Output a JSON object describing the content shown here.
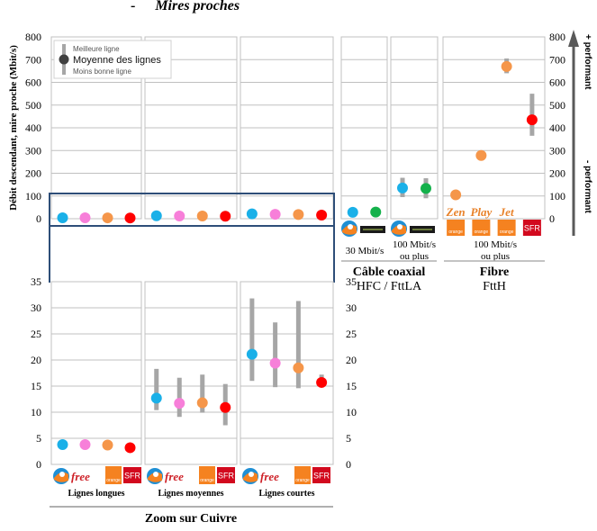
{
  "header": {
    "dash": "-",
    "title": "Mires proches"
  },
  "colors": {
    "bouygues": "#1ab0e8",
    "free": "#f77fd9",
    "orange": "#f5964a",
    "sfr": "#ff0000",
    "numericable": "#14b14b",
    "range_bar": "#a6a6a6",
    "frame": "#2e4e78",
    "grid": "#c0c0c0",
    "axis_arrow": "#595959"
  },
  "chart_data": [
    {
      "id": "main",
      "type": "scatter",
      "title": "Mires proches",
      "ylabel": "Débit descendant, mire proche (Mbit/s)",
      "ylim": [
        0,
        800
      ],
      "yticks": [
        "0",
        "100",
        "200",
        "300",
        "400",
        "500",
        "600",
        "700",
        "800"
      ],
      "grid": true,
      "legend": {
        "placement": "top-left",
        "entries": {
          "best": "Meilleure ligne",
          "mean": "Moyenne des lignes",
          "worst": "Moins bonne ligne"
        }
      },
      "right_axis": {
        "ylim": [
          0,
          800
        ],
        "yticks": [
          "0",
          "100",
          "200",
          "300",
          "400",
          "500",
          "600",
          "700",
          "800"
        ],
        "arrow_top_label": "+ performant",
        "arrow_bottom_label": "- performant"
      },
      "groups": [
        {
          "name": "Lignes longues",
          "technology": "Cuivre",
          "points": [
            {
              "operator": "Bouygues",
              "color": "bouygues",
              "mean": 3.8
            },
            {
              "operator": "Free",
              "color": "free",
              "mean": 3.8
            },
            {
              "operator": "Orange",
              "color": "orange",
              "mean": 3.7
            },
            {
              "operator": "SFR",
              "color": "sfr",
              "mean": 3.2
            }
          ]
        },
        {
          "name": "Lignes moyennes",
          "technology": "Cuivre",
          "points": [
            {
              "operator": "Bouygues",
              "color": "bouygues",
              "mean": 12.7
            },
            {
              "operator": "Free",
              "color": "free",
              "mean": 11.7
            },
            {
              "operator": "Orange",
              "color": "orange",
              "mean": 11.8
            },
            {
              "operator": "SFR",
              "color": "sfr",
              "mean": 10.9
            }
          ]
        },
        {
          "name": "Lignes courtes",
          "technology": "Cuivre",
          "points": [
            {
              "operator": "Bouygues",
              "color": "bouygues",
              "mean": 21.1
            },
            {
              "operator": "Free",
              "color": "free",
              "mean": 19.4
            },
            {
              "operator": "Orange",
              "color": "orange",
              "mean": 18.5
            },
            {
              "operator": "SFR",
              "color": "sfr",
              "mean": 15.7
            }
          ]
        },
        {
          "name": "30 Mbit/s",
          "technology": "Câble coaxial",
          "points": [
            {
              "operator": "Bouygues",
              "color": "bouygues",
              "mean": 28
            },
            {
              "operator": "Numericable",
              "color": "numericable",
              "mean": 29
            }
          ]
        },
        {
          "name": "100 Mbit/s ou plus",
          "technology": "Câble coaxial",
          "points": [
            {
              "operator": "Bouygues",
              "color": "bouygues",
              "mean": 135,
              "min": 95,
              "max": 180
            },
            {
              "operator": "Numericable",
              "color": "numericable",
              "mean": 133,
              "min": 90,
              "max": 178
            }
          ]
        },
        {
          "name": "100 Mbit/s ou plus",
          "technology": "Fibre",
          "points": [
            {
              "operator": "Orange Zen",
              "color": "orange",
              "mean": 105
            },
            {
              "operator": "Orange Play",
              "color": "orange",
              "mean": 278
            },
            {
              "operator": "Orange Jet",
              "color": "orange",
              "mean": 670,
              "min": 640,
              "max": 705
            },
            {
              "operator": "SFR",
              "color": "sfr",
              "mean": 435,
              "min": 365,
              "max": 550
            }
          ]
        }
      ]
    },
    {
      "id": "zoom",
      "type": "scatter",
      "title": "Zoom sur Cuivre",
      "ylim": [
        0,
        35
      ],
      "yticks": [
        "0",
        "5",
        "10",
        "15",
        "20",
        "25",
        "30",
        "35"
      ],
      "grid": true,
      "groups": [
        {
          "name": "Lignes longues",
          "points": [
            {
              "operator": "Bouygues",
              "color": "bouygues",
              "mean": 3.8
            },
            {
              "operator": "Free",
              "color": "free",
              "mean": 3.8
            },
            {
              "operator": "Orange",
              "color": "orange",
              "mean": 3.7
            },
            {
              "operator": "SFR",
              "color": "sfr",
              "mean": 3.2
            }
          ]
        },
        {
          "name": "Lignes moyennes",
          "points": [
            {
              "operator": "Bouygues",
              "color": "bouygues",
              "mean": 12.7,
              "min": 10.4,
              "max": 18.3
            },
            {
              "operator": "Free",
              "color": "free",
              "mean": 11.7,
              "min": 9.1,
              "max": 16.6
            },
            {
              "operator": "Orange",
              "color": "orange",
              "mean": 11.8,
              "min": 9.9,
              "max": 17.2
            },
            {
              "operator": "SFR",
              "color": "sfr",
              "mean": 10.9,
              "min": 7.5,
              "max": 15.4
            }
          ]
        },
        {
          "name": "Lignes courtes",
          "points": [
            {
              "operator": "Bouygues",
              "color": "bouygues",
              "mean": 21.1,
              "min": 16.0,
              "max": 31.8
            },
            {
              "operator": "Free",
              "color": "free",
              "mean": 19.4,
              "min": 14.8,
              "max": 27.2
            },
            {
              "operator": "Orange",
              "color": "orange",
              "mean": 18.5,
              "min": 14.6,
              "max": 31.3
            },
            {
              "operator": "SFR",
              "color": "sfr",
              "mean": 15.7,
              "min": 15.2,
              "max": 17.2
            }
          ]
        }
      ]
    }
  ],
  "labels": {
    "copper_groups": [
      "Lignes longues",
      "Lignes moyennes",
      "Lignes courtes"
    ],
    "copper_section": "Zoom sur Cuivre",
    "cable_30": "30 Mbit/s",
    "cable_100_line1": "100 Mbit/s",
    "cable_100_line2": "ou plus",
    "cable_section": "Câble coaxial",
    "cable_subsection": "HFC / FttLA",
    "fibre_speed_line1": "100 Mbit/s",
    "fibre_speed_line2": "ou plus",
    "fibre_section": "Fibre",
    "fibre_subsection": "FttH",
    "fibre_offers": [
      "Zen",
      "Play",
      "Jet"
    ]
  },
  "logos": {
    "free": "free",
    "orange": "orange",
    "sfr": "SFR",
    "numericable": "numericable"
  }
}
